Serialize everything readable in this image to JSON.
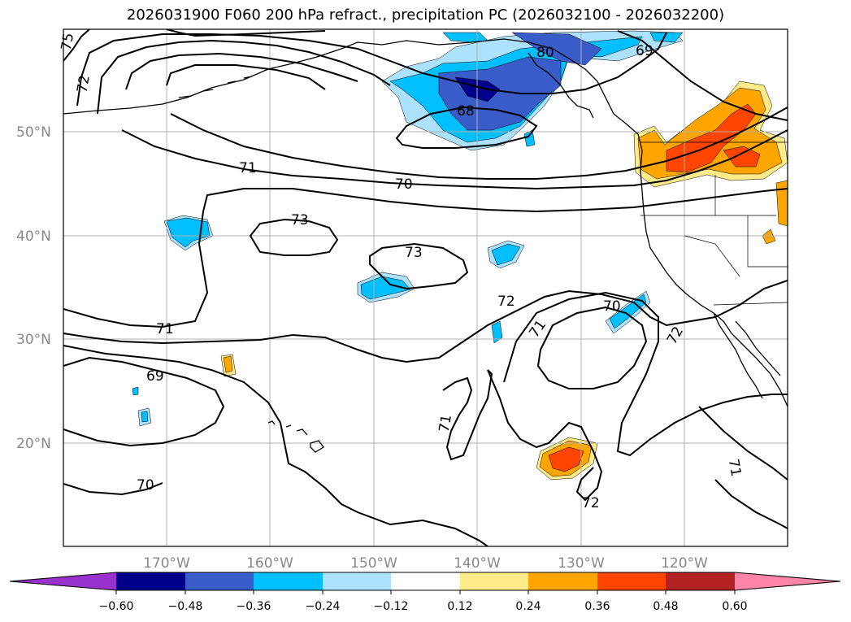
{
  "title": "2026031900 F060 200 hPa refract., precipitation PC (2026032100 - 2026032200)",
  "lon_labels": [
    "170°W",
    "160°W",
    "150°W",
    "140°W",
    "130°W",
    "120°W"
  ],
  "lat_labels": [
    "50°N",
    "40°N",
    "30°N",
    "20°N"
  ],
  "contour_labels": [
    "80",
    "69",
    "72",
    "68",
    "71",
    "70",
    "73",
    "73",
    "72",
    "70",
    "71",
    "71",
    "69",
    "70",
    "71",
    "72",
    "72",
    "71",
    "75"
  ],
  "colorbar": {
    "ticks": [
      "−0.60",
      "−0.48",
      "−0.36",
      "−0.24",
      "−0.12",
      "0.12",
      "0.24",
      "0.36",
      "0.48",
      "0.60"
    ],
    "colors": [
      "#9932CC",
      "#00008B",
      "#3A5CC9",
      "#00BFFF",
      "#ADE2FF",
      "#FFFFFF",
      "#FFEB8A",
      "#FFA500",
      "#FF4500",
      "#B22222",
      "#FF85A8"
    ]
  },
  "shading_colors": {
    "light_blue": "#ADE2FF",
    "sky_blue": "#00BFFF",
    "royal_blue": "#3A5CC9",
    "navy": "#00008B",
    "light_yellow": "#FFEB8A",
    "orange": "#FFA500",
    "red_orange": "#FF4500"
  }
}
